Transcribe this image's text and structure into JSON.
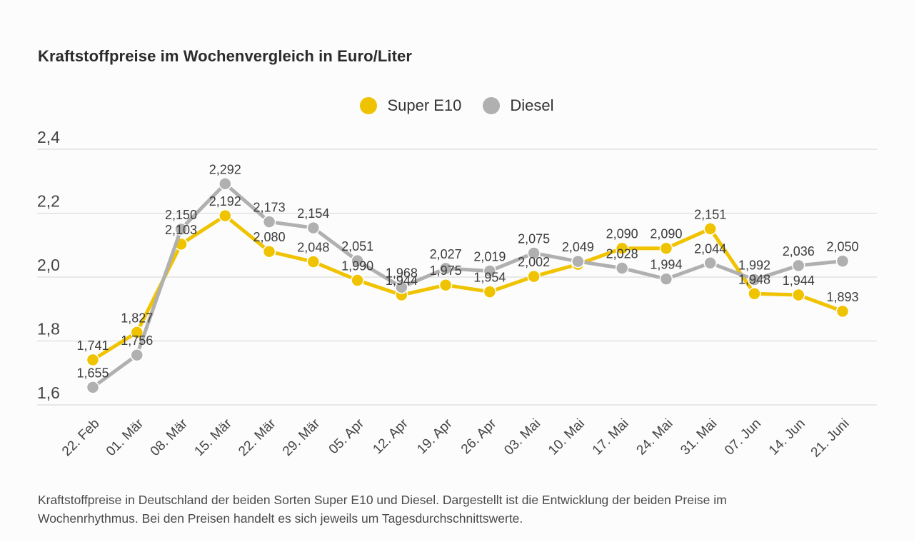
{
  "title": "Kraftstoffpreise im Wochenvergleich in Euro/Liter",
  "legend": [
    {
      "label": "Super E10",
      "color": "#F0C300"
    },
    {
      "label": "Diesel",
      "color": "#B0B0B0"
    }
  ],
  "caption_lines": [
    "Kraftstoffpreise in Deutschland der beiden Sorten Super E10 und Diesel. Dargestellt ist die Entwicklung der beiden Preise im",
    "Wochenrhythmus. Bei den Preisen handelt es sich jeweils um Tagesdurchschnittswerte."
  ],
  "chart_data": {
    "type": "line",
    "title": "Kraftstoffpreise im Wochenvergleich in Euro/Liter",
    "unit": "Euro/Liter",
    "categories": [
      "22. Feb",
      "01. Mär",
      "08. Mär",
      "15. Mär",
      "22. Mär",
      "29. Mär",
      "05. Apr",
      "12. Apr",
      "19. Apr",
      "26. Apr",
      "03. Mai",
      "10. Mai",
      "17. Mai",
      "24. Mai",
      "31. Mai",
      "07. Jun",
      "14. Jun",
      "21. Juni"
    ],
    "series": [
      {
        "name": "Super E10",
        "color": "#F0C300",
        "values": [
          1.741,
          1.827,
          2.103,
          2.192,
          2.08,
          2.048,
          1.99,
          1.944,
          1.975,
          1.954,
          2.002,
          2.04,
          2.09,
          2.09,
          2.151,
          1.948,
          1.944,
          1.893
        ],
        "labels": [
          "1,741",
          "1,827",
          "2,103",
          "2,192",
          "2,080",
          "2,048",
          "1,990",
          "1,944",
          "1,975",
          "1,954",
          "2,002",
          "",
          "2,090",
          "2,090",
          "2,151",
          "1,948",
          "1,944",
          "1,893"
        ]
      },
      {
        "name": "Diesel",
        "color": "#B0B0B0",
        "values": [
          1.655,
          1.756,
          2.15,
          2.292,
          2.173,
          2.154,
          2.051,
          1.968,
          2.027,
          2.019,
          2.075,
          2.049,
          2.028,
          1.994,
          2.044,
          1.992,
          2.036,
          2.05
        ],
        "labels": [
          "1,655",
          "1,756",
          "2,150",
          "2,292",
          "2,173",
          "2,154",
          "2,051",
          "1,968",
          "2,027",
          "2,019",
          "2,075",
          "2,049",
          "2,028",
          "1,994",
          "2,044",
          "1,992",
          "2,036",
          "2,050"
        ]
      }
    ],
    "ylim": [
      1.6,
      2.4
    ],
    "yticks": {
      "values": [
        2.4,
        2.2,
        2.0,
        1.8,
        1.6
      ],
      "labels": [
        "2,4",
        "2,2",
        "2,0",
        "1,8",
        "1,6"
      ]
    },
    "grid": true,
    "legend_position": "top"
  },
  "style": {
    "gridline_color": "#d4d4d4",
    "axis_text_color": "#454545",
    "value_label_color": "#3c3c3c"
  }
}
